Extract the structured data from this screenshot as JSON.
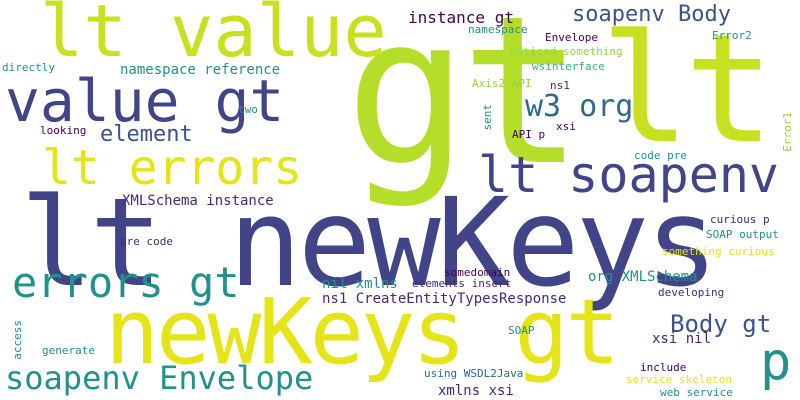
{
  "palette": {
    "lime": "#b5de2b",
    "yellow_green": "#c8e020",
    "yellow": "#e4e419",
    "indigo": "#414487",
    "navy": "#3b528b",
    "dark_purple": "#482878",
    "deep_purple": "#440154",
    "blue": "#31688e",
    "teal": "#21918c",
    "green": "#35b779",
    "light_green": "#6ece58",
    "pale_green": "#90d743"
  },
  "words": [
    {
      "id": "gt-large",
      "text": "gt",
      "color": "lime",
      "weight": 1.0
    },
    {
      "id": "lt-newkeys",
      "text": "lt newKeys",
      "color": "indigo",
      "weight": 0.95
    },
    {
      "id": "lt-big",
      "text": "lt",
      "color": "yellow_green",
      "weight": 0.9
    },
    {
      "id": "newkeys-gt",
      "text": "newKeys gt",
      "color": "yellow",
      "weight": 0.85
    },
    {
      "id": "lt-value",
      "text": "lt value",
      "color": "yellow_green",
      "weight": 0.8
    },
    {
      "id": "value-gt",
      "text": "value gt",
      "color": "indigo",
      "weight": 0.75
    },
    {
      "id": "lt-soapenv",
      "text": "lt soapenv",
      "color": "indigo",
      "weight": 0.65
    },
    {
      "id": "lt-errors",
      "text": "lt errors",
      "color": "yellow",
      "weight": 0.6
    },
    {
      "id": "errors-gt",
      "text": "errors gt",
      "color": "teal",
      "weight": 0.55
    },
    {
      "id": "p-big",
      "text": "p",
      "color": "teal",
      "weight": 0.5
    },
    {
      "id": "soapenv-envelope",
      "text": "soapenv Envelope",
      "color": "teal",
      "weight": 0.45
    },
    {
      "id": "soapenv-body",
      "text": "soapenv Body",
      "color": "navy",
      "weight": 0.4
    },
    {
      "id": "w3-org",
      "text": "w3 org",
      "color": "blue",
      "weight": 0.4
    },
    {
      "id": "body-gt",
      "text": "Body gt",
      "color": "navy",
      "weight": 0.35
    },
    {
      "id": "element",
      "text": "element",
      "color": "navy",
      "weight": 0.3
    },
    {
      "id": "instance-gt",
      "text": "instance gt",
      "color": "deep_purple",
      "weight": 0.25
    },
    {
      "id": "namespace-reference",
      "text": "namespace reference",
      "color": "teal",
      "weight": 0.2
    },
    {
      "id": "xmlschema-instance",
      "text": "XMLSchema instance",
      "color": "dark_purple",
      "weight": 0.2
    },
    {
      "id": "ns1-createentitytypesresponse",
      "text": "ns1 CreateEntityTypesResponse",
      "color": "dark_purple",
      "weight": 0.2
    },
    {
      "id": "org-xmlschema",
      "text": "org XMLSchema",
      "color": "teal",
      "weight": 0.2
    },
    {
      "id": "nil-xmlns",
      "text": "nil xmlns",
      "color": "teal",
      "weight": 0.2
    },
    {
      "id": "xsi-nil",
      "text": "xsi nil",
      "color": "dark_purple",
      "weight": 0.2
    },
    {
      "id": "xmlns-xsi",
      "text": "xmlns xsi",
      "color": "dark_purple",
      "weight": 0.2
    },
    {
      "id": "namespace-small",
      "text": "namespace",
      "color": "teal",
      "weight": 0.1
    },
    {
      "id": "envelope-small",
      "text": "Envelope",
      "color": "deep_purple",
      "weight": 0.1
    },
    {
      "id": "noticed-something",
      "text": "noticed something",
      "color": "pale_green",
      "weight": 0.1
    },
    {
      "id": "wsinterface",
      "text": "wsinterface",
      "color": "green",
      "weight": 0.1
    },
    {
      "id": "error2",
      "text": "Error2",
      "color": "teal",
      "weight": 0.1
    },
    {
      "id": "directly",
      "text": "directly",
      "color": "teal",
      "weight": 0.1
    },
    {
      "id": "axis2-api",
      "text": "Axis2 API",
      "color": "pale_green",
      "weight": 0.1
    },
    {
      "id": "ns1-small",
      "text": "ns1",
      "color": "dark_purple",
      "weight": 0.1
    },
    {
      "id": "two",
      "text": "two",
      "color": "teal",
      "weight": 0.1
    },
    {
      "id": "sent",
      "text": "sent",
      "color": "teal",
      "weight": 0.1
    },
    {
      "id": "xsi-small",
      "text": "xsi",
      "color": "deep_purple",
      "weight": 0.1
    },
    {
      "id": "api-p",
      "text": "API p",
      "color": "deep_purple",
      "weight": 0.1
    },
    {
      "id": "looking",
      "text": "looking",
      "color": "deep_purple",
      "weight": 0.1
    },
    {
      "id": "error1",
      "text": "Error1",
      "color": "pale_green",
      "weight": 0.1
    },
    {
      "id": "code-pre",
      "text": "code pre",
      "color": "teal",
      "weight": 0.1
    },
    {
      "id": "pre-code",
      "text": "pre code",
      "color": "dark_purple",
      "weight": 0.1
    },
    {
      "id": "curious-p",
      "text": "curious p",
      "color": "dark_purple",
      "weight": 0.1
    },
    {
      "id": "soap-output",
      "text": "SOAP output",
      "color": "teal",
      "weight": 0.1
    },
    {
      "id": "something-curious",
      "text": "something curious",
      "color": "yellow",
      "weight": 0.1
    },
    {
      "id": "somedomain",
      "text": "somedomain",
      "color": "deep_purple",
      "weight": 0.1
    },
    {
      "id": "elements-insert",
      "text": "elements insert",
      "color": "dark_purple",
      "weight": 0.1
    },
    {
      "id": "developing",
      "text": "developing",
      "color": "dark_purple",
      "weight": 0.1
    },
    {
      "id": "soap",
      "text": "SOAP",
      "color": "teal",
      "weight": 0.1
    },
    {
      "id": "access",
      "text": "access",
      "color": "teal",
      "weight": 0.1
    },
    {
      "id": "generate",
      "text": "generate",
      "color": "teal",
      "weight": 0.1
    },
    {
      "id": "using-wsdl2java",
      "text": "using WSDL2Java",
      "color": "blue",
      "weight": 0.1
    },
    {
      "id": "include",
      "text": "include",
      "color": "deep_purple",
      "weight": 0.1
    },
    {
      "id": "service-skeleton",
      "text": "service skeleton",
      "color": "yellow",
      "weight": 0.1
    },
    {
      "id": "web-service",
      "text": "web service",
      "color": "teal",
      "weight": 0.1
    }
  ]
}
